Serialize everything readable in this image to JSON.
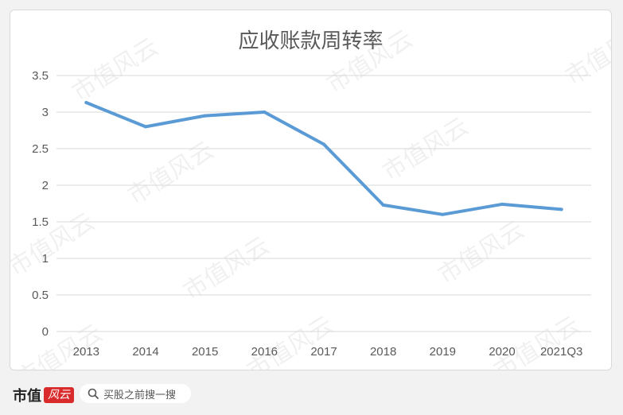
{
  "chart_data": {
    "type": "line",
    "title": "应收账款周转率",
    "categories": [
      "2013",
      "2014",
      "2015",
      "2016",
      "2017",
      "2018",
      "2019",
      "2020",
      "2021Q3"
    ],
    "series": [
      {
        "values": [
          3.13,
          2.8,
          2.95,
          3.0,
          2.56,
          1.73,
          1.6,
          1.74,
          1.67
        ]
      }
    ],
    "ylim": [
      0,
      3.5
    ],
    "yticks": [
      "0",
      "0.5",
      "1",
      "1.5",
      "2",
      "2.5",
      "3",
      "3.5"
    ],
    "grid": true,
    "line_color": "#5b9bd5"
  },
  "watermark": "市值风云",
  "footer": {
    "brand": "市值",
    "brand_logo": "风云",
    "search_placeholder": "买股之前搜一搜"
  }
}
